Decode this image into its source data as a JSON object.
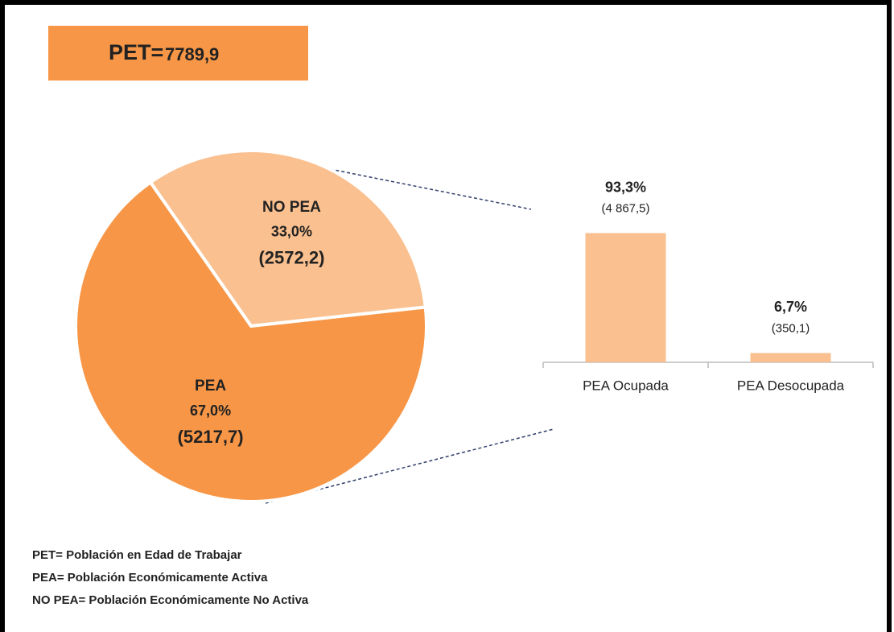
{
  "header": {
    "label": "PET=",
    "value": 7789.9,
    "value_label": "7789,9"
  },
  "chart_data": [
    {
      "type": "pie",
      "categories": [
        "NO PEA",
        "PEA"
      ],
      "values": [
        33.0,
        67.0
      ],
      "value_labels": [
        "33,0%",
        "67,0%"
      ],
      "counts": [
        2572.2,
        5217.7
      ],
      "count_labels": [
        "(2572,2)",
        "(5217,7)"
      ],
      "colors": [
        "#fac08f",
        "#f79646"
      ]
    },
    {
      "type": "bar",
      "categories": [
        "PEA Ocupada",
        "PEA Desocupada"
      ],
      "values": [
        93.3,
        6.7
      ],
      "value_labels": [
        "93,3%",
        "6,7%"
      ],
      "counts": [
        4867.5,
        350.1
      ],
      "count_labels": [
        "(4 867,5)",
        "(350,1)"
      ],
      "color": "#fac08f"
    }
  ],
  "notes": [
    "PET= Población en Edad de Trabajar",
    "PEA= Población Económicamente Activa",
    "NO PEA= Población Económicamente No Activa"
  ]
}
